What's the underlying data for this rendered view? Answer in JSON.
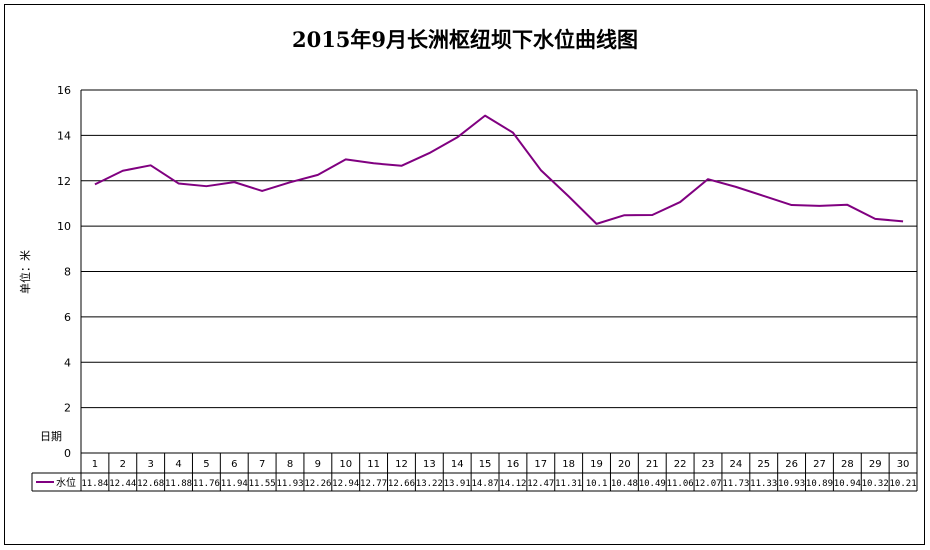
{
  "chart_data": {
    "type": "line",
    "title": "2015年9月长洲枢纽坝下水位曲线图",
    "ylabel": "单位：米",
    "xlabel": "日期",
    "ylim": [
      0,
      16
    ],
    "yticks": [
      0,
      2,
      4,
      6,
      8,
      10,
      12,
      14,
      16
    ],
    "grid": true,
    "categories": [
      "1",
      "2",
      "3",
      "4",
      "5",
      "6",
      "7",
      "8",
      "9",
      "10",
      "11",
      "12",
      "13",
      "14",
      "15",
      "16",
      "17",
      "18",
      "19",
      "20",
      "21",
      "22",
      "23",
      "24",
      "25",
      "26",
      "27",
      "28",
      "29",
      "30"
    ],
    "series": [
      {
        "name": "水位",
        "color": "#800080",
        "values": [
          11.84,
          12.44,
          12.68,
          11.88,
          11.76,
          11.94,
          11.55,
          11.93,
          12.26,
          12.94,
          12.77,
          12.66,
          13.22,
          13.91,
          14.87,
          14.12,
          12.47,
          11.31,
          10.1,
          10.48,
          10.49,
          11.06,
          12.07,
          11.73,
          11.33,
          10.93,
          10.89,
          10.94,
          10.32,
          10.21
        ],
        "labels": [
          "11.84",
          "12.44",
          "12.68",
          "11.88",
          "11.76",
          "11.94",
          "11.55",
          "11.93",
          "12.26",
          "12.94",
          "12.77",
          "12.66",
          "13.22",
          "13.91",
          "14.87",
          "14.12",
          "12.47",
          "11.31",
          "10.1",
          "10.48",
          "10.49",
          "11.06",
          "12.07",
          "11.73",
          "11.33",
          "10.93",
          "10.89",
          "10.94",
          "10.32",
          "10.21"
        ]
      }
    ],
    "data_table": true
  }
}
